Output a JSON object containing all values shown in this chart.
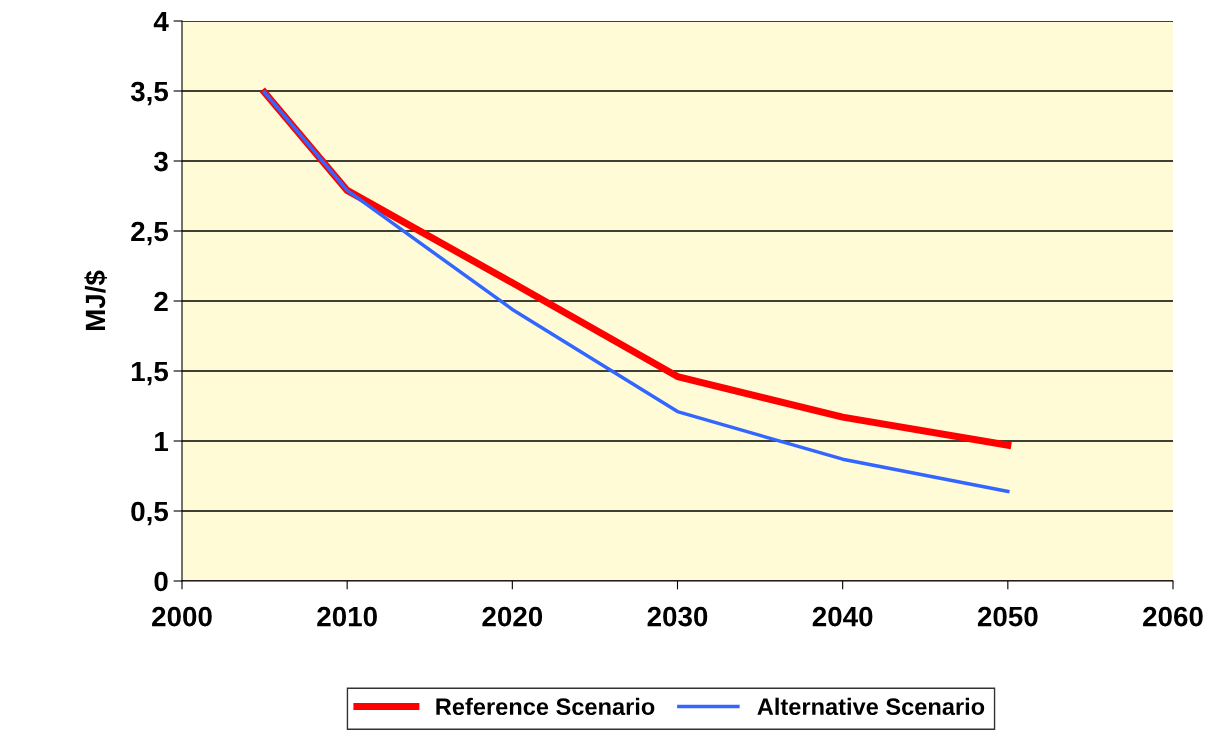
{
  "chart_data": {
    "type": "line",
    "ylabel": "MJ/$",
    "x": [
      2005,
      2010,
      2020,
      2030,
      2040,
      2050
    ],
    "series": [
      {
        "name": "Reference Scenario",
        "color": "#ff0000",
        "values": [
          3.49,
          2.79,
          2.13,
          1.46,
          1.17,
          0.97
        ]
      },
      {
        "name": "Alternative Scenario",
        "color": "#3366ff",
        "values": [
          3.49,
          2.79,
          1.94,
          1.21,
          0.87,
          0.64
        ]
      }
    ],
    "xlim": [
      2000,
      2060
    ],
    "xticks": [
      2000,
      2010,
      2020,
      2030,
      2040,
      2050,
      2060
    ],
    "ylim": [
      0,
      4
    ],
    "yticks": [
      0,
      {
        "value": 0.5,
        "label": "0,5"
      },
      1,
      {
        "value": 1.5,
        "label": "1,5"
      },
      2,
      {
        "value": 2.5,
        "label": "2,5"
      },
      3,
      {
        "value": 3.5,
        "label": "3,5"
      },
      4
    ],
    "grid": "y",
    "legend": "bottom",
    "marker": "none",
    "line_style": "solid"
  }
}
